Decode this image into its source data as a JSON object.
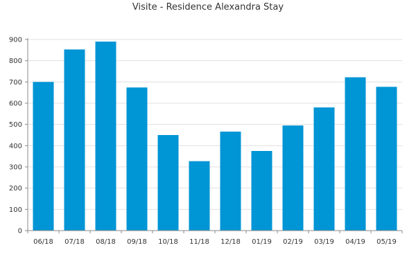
{
  "chart_data": {
    "type": "bar",
    "title": "Visite - Residence Alexandra Stay",
    "xlabel": "",
    "ylabel": "",
    "categories": [
      "06/18",
      "07/18",
      "08/18",
      "09/18",
      "10/18",
      "11/18",
      "12/18",
      "01/19",
      "02/19",
      "03/19",
      "04/19",
      "05/19"
    ],
    "values": [
      700,
      853,
      890,
      674,
      450,
      327,
      466,
      375,
      495,
      580,
      722,
      677
    ],
    "ylim": [
      0,
      900
    ],
    "yticks": [
      0,
      100,
      200,
      300,
      400,
      500,
      600,
      700,
      800,
      900
    ],
    "grid": true,
    "legend": "none",
    "bar_color": "#0095d5",
    "grid_color": "#e0e0e0",
    "axis_color": "#888888"
  }
}
